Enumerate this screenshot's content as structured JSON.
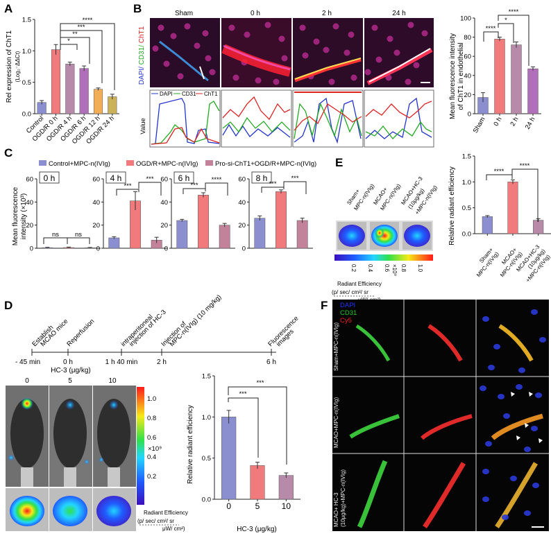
{
  "colors": {
    "blue": "#8b8fd0",
    "red": "#f07a7c",
    "purple": "#b78aa9",
    "lilac": "#b06fb8",
    "orange": "#f2ad57",
    "tan": "#cbb25a",
    "control": "#8b8fd0",
    "ogd": "#f07a7c",
    "prosi": "#c1829a",
    "dapi": "#2233cc",
    "cd31": "#22aa22",
    "cht1": "#dd2222"
  },
  "panels": {
    "A": {
      "label": "A",
      "ylabel_line1": "Rel expression of ChT1",
      "ylabel_line2": "(Log₂⁻ΔΔCt)",
      "sig": [
        "*",
        "**",
        "***",
        "****"
      ]
    },
    "B": {
      "label": "B",
      "timepoints": [
        "Sham",
        "0 h",
        "2 h",
        "24 h"
      ],
      "side_label": {
        "dapi": "DAPI/",
        "cd31": " CD31/",
        "cht1": " ChT1"
      },
      "value_label": "Value",
      "legend": [
        "DAPI",
        "CD31",
        "ChT1"
      ],
      "bar_ylabel_line1": "Mean fluorescence intensity",
      "bar_ylabel_line2": "of ChT1 in endothelial",
      "sig": [
        "****",
        "*",
        "****"
      ]
    },
    "C": {
      "label": "C",
      "legend": [
        "Control+MPC-n(IVIg)",
        "OGD/R+MPC-n(IVIg)",
        "Pro-si-ChT1+OGD/R+MPC-n(IVIg)"
      ],
      "ylabel_line1": "Mean fluorescence",
      "ylabel_line2": "intensity (×10³)",
      "ns": "ns",
      "stars": "***",
      "stars4": "****"
    },
    "D": {
      "label": "D",
      "timeline_ticks": [
        "- 45 min",
        "0 h",
        "1 h 40 min",
        "2 h",
        "6 h"
      ],
      "events": [
        [
          "Establish",
          "MCAO mice"
        ],
        [
          "Reperfusion"
        ],
        [
          "intraperitoneal",
          "injection of HC-3"
        ],
        [
          "Injection of",
          "MPC-n(IVIg) (10 mg/kg)"
        ],
        [
          "Fluorescence",
          "images"
        ]
      ],
      "hc3_title": "HC-3 (μg/kg)",
      "doses": [
        "0",
        "5",
        "10"
      ],
      "colorbar_ticks": [
        "1.0",
        "0.8",
        "0.6",
        "0.4",
        "0.2"
      ],
      "colorbar_exp": "×10⁹",
      "radiant_label": "Radiant Efficiency",
      "radiant_units_line1": "(p/ sec/ cm²/ sr",
      "radiant_units_line2": "μW/ cm²)",
      "bar_ylabel": "Relative radiant efficiency",
      "bar_xlabel": "HC-3 (μg/kg)",
      "sig": [
        "***",
        "***"
      ]
    },
    "E": {
      "label": "E",
      "conditions": [
        [
          "Sham+",
          "MPC-n(IVIg)"
        ],
        [
          "MCAO+",
          "MPC-n(IVIg)"
        ],
        [
          "MCAO+HC-3",
          "(10μg/kg)",
          "+MPC-n(IVIg)"
        ]
      ],
      "colorbar_ticks": [
        "0.2",
        "0.4",
        "0.6",
        "0.8",
        "1.0"
      ],
      "colorbar_exp": "×10⁹",
      "radiant_label": "Radiant Efficiency",
      "radiant_units_line1": "(p/ sec/ cm²/ sr",
      "radiant_units_line2": "μW/ cm²)",
      "bar_ylabel": "Relative radiant efficiency",
      "sig": [
        "****",
        "****"
      ]
    },
    "F": {
      "label": "F",
      "channels": [
        "DAPI",
        "CD31",
        "Cy5"
      ],
      "rows": [
        [
          "Sham+MPC-n(IVIg)"
        ],
        [
          "MCAO+MPC-n(IVIg)"
        ],
        [
          "MCAO+ HC-3",
          "(10μg/kg)+MPC-n(IVIg)"
        ]
      ]
    }
  },
  "chart_data": [
    {
      "type": "bar",
      "panel": "A",
      "categories": [
        "Control",
        "OGD/R 0 h",
        "OGD/R 4 h",
        "OGD/R 6 h",
        "OGD/R 12 h",
        "OGD/R 24 h"
      ],
      "values": [
        0.18,
        1.02,
        0.79,
        0.72,
        0.39,
        0.27
      ],
      "errors": [
        0.03,
        0.08,
        0.03,
        0.04,
        0.02,
        0.04
      ],
      "colors": [
        "#8b8fd0",
        "#f07a7c",
        "#b78aa9",
        "#b06fb8",
        "#f2ad57",
        "#cbb25a"
      ],
      "ylim": [
        0,
        1.5
      ],
      "yticks": [
        "0.0",
        "0.5",
        "1.0",
        "1.5"
      ]
    },
    {
      "type": "bar",
      "panel": "B",
      "categories": [
        "Sham",
        "0 h",
        "2 h",
        "24 h"
      ],
      "values": [
        17,
        78,
        72,
        47
      ],
      "errors": [
        5,
        2,
        3,
        2
      ],
      "colors": [
        "#8b8fd0",
        "#f07a7c",
        "#b78aa9",
        "#b06fb8"
      ],
      "ylim": [
        0,
        100
      ],
      "yticks": [
        "0",
        "20",
        "40",
        "60",
        "80",
        "100"
      ]
    },
    {
      "type": "bar",
      "panel": "C",
      "categories": [
        "0 h",
        "4 h",
        "6 h",
        "8 h"
      ],
      "series": [
        {
          "name": "Control+MPC-n(IVIg)",
          "values": [
            0.5,
            9,
            24,
            26
          ],
          "errors": [
            0.3,
            1,
            1,
            2
          ]
        },
        {
          "name": "OGD/R+MPC-n(IVIg)",
          "values": [
            0.6,
            41,
            46,
            49
          ],
          "errors": [
            0.4,
            8,
            2,
            1.5
          ]
        },
        {
          "name": "Pro-si-ChT1+OGD/R+MPC-n(IVIg)",
          "values": [
            0.4,
            7,
            20,
            24
          ],
          "errors": [
            0.3,
            2.5,
            1.5,
            2
          ]
        }
      ],
      "ylim": [
        0,
        60
      ],
      "yticks": [
        "0",
        "20",
        "40",
        "60"
      ]
    },
    {
      "type": "bar",
      "panel": "D",
      "categories": [
        "0",
        "5",
        "10"
      ],
      "values": [
        1.0,
        0.41,
        0.29
      ],
      "errors": [
        0.08,
        0.04,
        0.03
      ],
      "colors": [
        "#8b8fd0",
        "#f07a7c",
        "#b78aa9"
      ],
      "ylim": [
        0,
        1.5
      ],
      "yticks": [
        "0.0",
        "0.5",
        "1.0",
        "1.5"
      ]
    },
    {
      "type": "bar",
      "panel": "E",
      "categories": [
        "Sham+MPC-n(IVIg)",
        "MCAO+MPC-n(IVIg)",
        "MCAO+HC-3 (10μg/kg) +MPC-n(IVIg)"
      ],
      "values": [
        0.33,
        1.0,
        0.26
      ],
      "errors": [
        0.02,
        0.04,
        0.03
      ],
      "colors": [
        "#8b8fd0",
        "#f07a7c",
        "#b78aa9"
      ],
      "ylim": [
        0,
        1.5
      ],
      "yticks": [
        "0.0",
        "0.5",
        "1.0",
        "1.5"
      ]
    }
  ]
}
